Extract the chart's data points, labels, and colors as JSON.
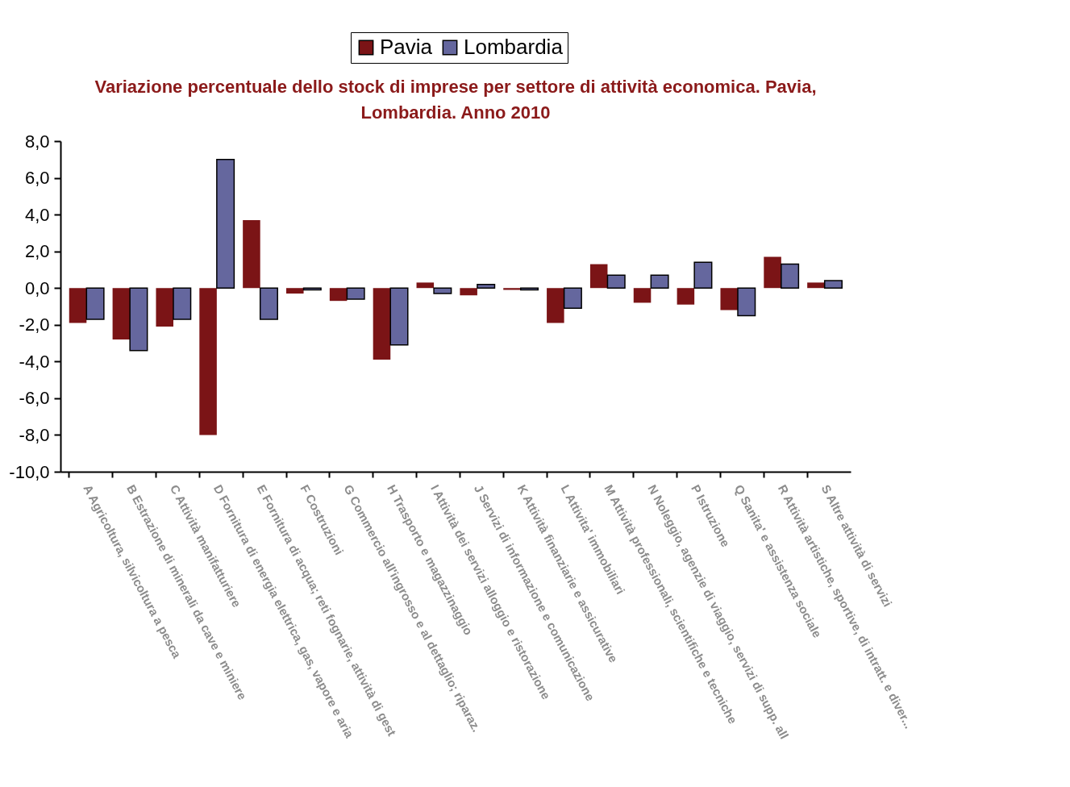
{
  "chart_data": {
    "type": "bar",
    "title": [
      "Variazione percentuale dello stock di imprese per settore di attività economica. Pavia,",
      "Lombardia. Anno 2010"
    ],
    "categories": [
      "A Agricoltura, silvicoltura a pesca",
      "B Estrazione di minerali da cave e miniere",
      "C Attività manifatturiere",
      "D Fornitura di energia elettrica, gas, vapore e aria",
      "E Fornitura di acqua; reti fognarie, attività di gest",
      "F Costruzioni",
      "G Commercio all'ingrosso e al dettaglio; riparaz.",
      "H Trasporto e magazzinaggio",
      "I Attività dei servizi alloggio e ristorazione",
      "J Servizi di informazione e comunicazione",
      "K Attività finanziarie e assicurative",
      "L Attivita' immobiliari",
      "M Attività professionali, scientifiche e tecniche",
      "N Noleggio, agenzie di viaggio, servizi di supp. all",
      "P Istruzione",
      "Q Sanita' e assistenza sociale",
      "R Attività artistiche, sportive, di intratt. e diver...",
      "S Altre attività di servizi"
    ],
    "series": [
      {
        "name": "Pavia",
        "color": "#7b1416",
        "values": [
          -1.9,
          -2.8,
          -2.1,
          -8.0,
          3.7,
          -0.3,
          -0.7,
          -3.9,
          0.3,
          -0.4,
          -0.1,
          -1.9,
          1.3,
          -0.8,
          -0.9,
          -1.2,
          1.7,
          0.3
        ]
      },
      {
        "name": "Lombardia",
        "color": "#65679e",
        "values": [
          -1.7,
          -3.4,
          -1.7,
          7.0,
          -1.7,
          -0.1,
          -0.6,
          -3.1,
          -0.3,
          0.2,
          -0.1,
          -1.1,
          0.7,
          0.7,
          1.4,
          -1.5,
          1.3,
          0.4
        ]
      }
    ],
    "ylim": [
      -10,
      8
    ],
    "yticks": [
      {
        "value": -10,
        "label": "-10,0"
      },
      {
        "value": -8,
        "label": "-8,0"
      },
      {
        "value": -6,
        "label": "-6,0"
      },
      {
        "value": -4,
        "label": "-4,0"
      },
      {
        "value": -2,
        "label": "-2,0"
      },
      {
        "value": 0,
        "label": "0,0"
      },
      {
        "value": 2,
        "label": "2,0"
      },
      {
        "value": 4,
        "label": "4,0"
      },
      {
        "value": 6,
        "label": "6,0"
      },
      {
        "value": 8,
        "label": "8,0"
      }
    ],
    "grid": false,
    "legend": "top"
  }
}
